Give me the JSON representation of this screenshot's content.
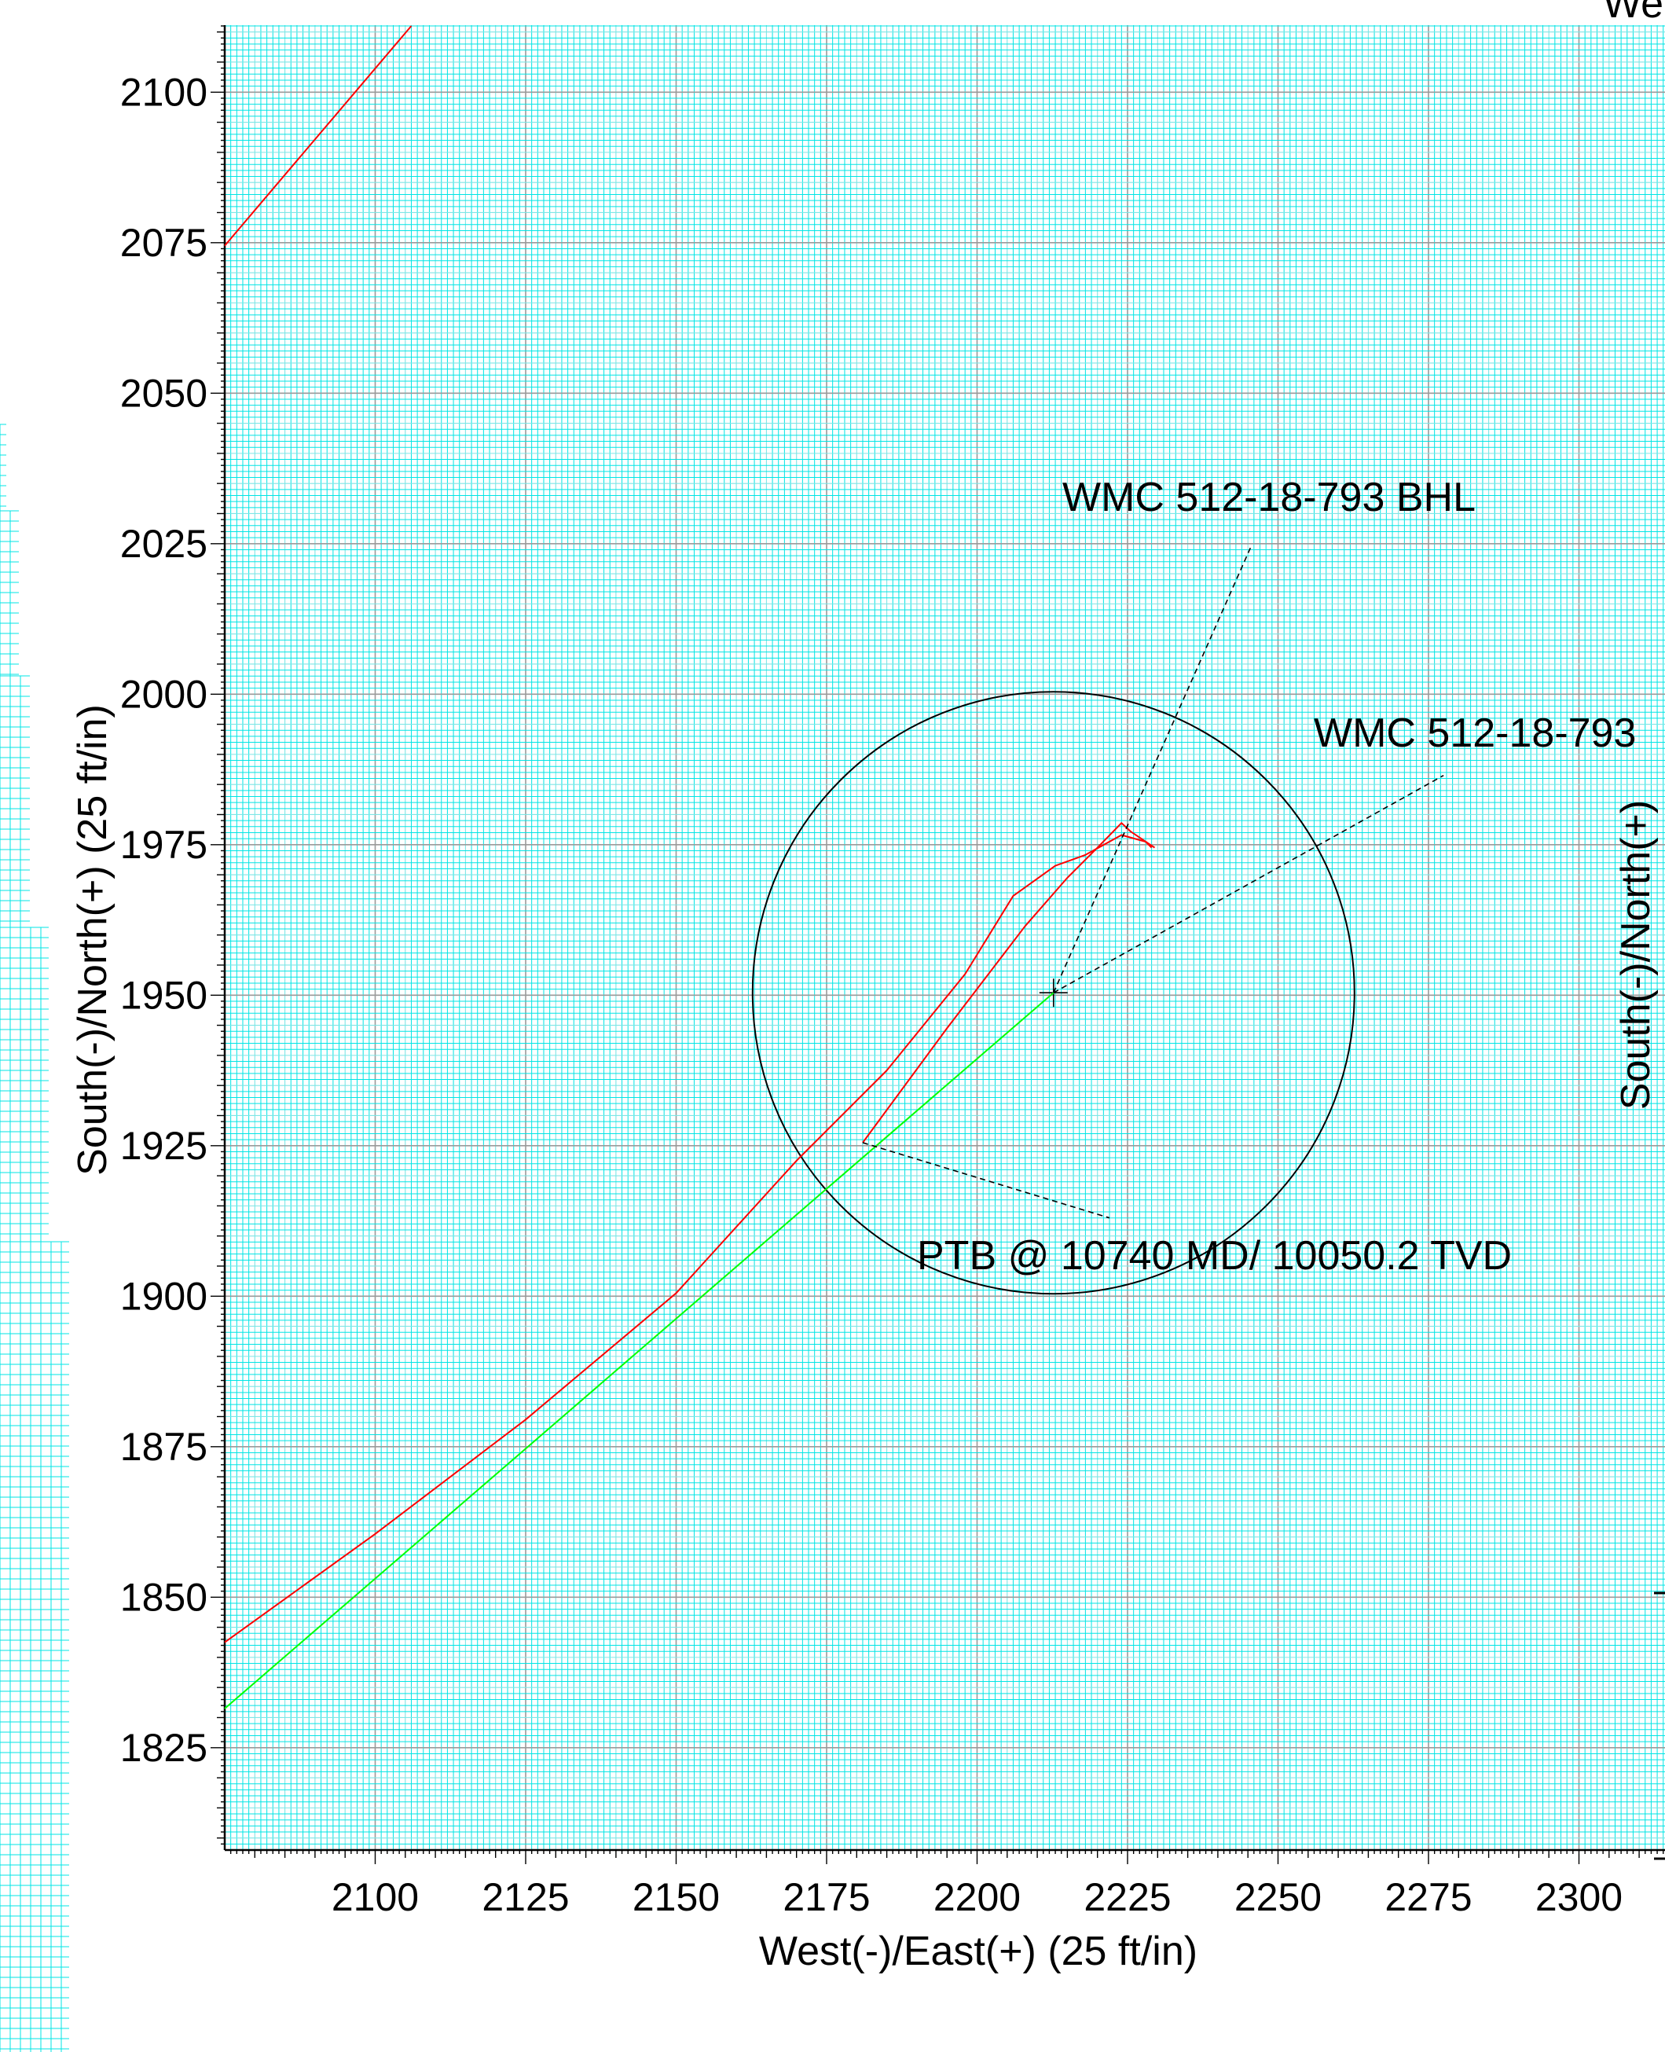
{
  "chart_data": {
    "type": "line",
    "xlabel": "West(-)/East(+) (25 ft/in)",
    "ylabel": "South(-)/North(+) (25 ft/in)",
    "right_ylabel_partial": "South(-)/North(+)",
    "top_right_partial": "We",
    "xlim": [
      2075,
      2315
    ],
    "ylim": [
      1808,
      2111
    ],
    "x_ticks": [
      2100,
      2125,
      2150,
      2175,
      2200,
      2225,
      2250,
      2275,
      2300
    ],
    "y_ticks": [
      1825,
      1850,
      1875,
      1900,
      1925,
      1950,
      1975,
      2000,
      2025,
      2050,
      2075,
      2100
    ],
    "grid": true,
    "target": {
      "name": "WMC 512-18-793 BHL",
      "center": [
        2212.7,
        1950.4
      ],
      "radius": 50
    },
    "series": [
      {
        "color": "#ff0000",
        "points": [
          [
            2075,
            1842.5
          ],
          [
            2100,
            1860.5
          ],
          [
            2125,
            1879.5
          ],
          [
            2150,
            1900.5
          ],
          [
            2170,
            1922.5
          ],
          [
            2185,
            1937.5
          ],
          [
            2198,
            1953.5
          ],
          [
            2206,
            1966.5
          ],
          [
            2213,
            1971.5
          ],
          [
            2218,
            1973.3
          ],
          [
            2224,
            1976.6
          ],
          [
            2228,
            1975.5
          ],
          [
            2229,
            1974.5
          ]
        ]
      },
      {
        "color": "#00ff00",
        "points": [
          [
            2075,
            1831.5
          ],
          [
            2212.7,
            1950.4
          ]
        ]
      },
      {
        "color": "#ff0000",
        "points": [
          [
            2075,
            2074.5
          ],
          [
            2106,
            2111
          ]
        ]
      },
      {
        "color": "#ff0000",
        "points": [
          [
            2181,
            1925.5
          ],
          [
            2195,
            1944.5
          ],
          [
            2208,
            1961.5
          ],
          [
            2215,
            1969.5
          ],
          [
            2220,
            1974.5
          ],
          [
            2224,
            1978.6
          ],
          [
            2225.5,
            1977.2
          ],
          [
            2229.5,
            1974.5
          ]
        ]
      }
    ],
    "annotations": [
      {
        "text": "WMC 512-18-793 BHL",
        "anchor": [
          2212.7,
          1950.4
        ],
        "leader_end": [
          2245.5,
          2024.5
        ]
      },
      {
        "text": "WMC 512-18-793",
        "anchor": [
          2212.7,
          1950.4
        ],
        "leader_end": [
          2277.5,
          1986.5
        ]
      },
      {
        "text": "PTB @ 10740 MD/ 10050.2  TVD",
        "anchor": [
          2181,
          1925.5
        ],
        "leader_end": [
          2222,
          1913
        ]
      }
    ]
  }
}
